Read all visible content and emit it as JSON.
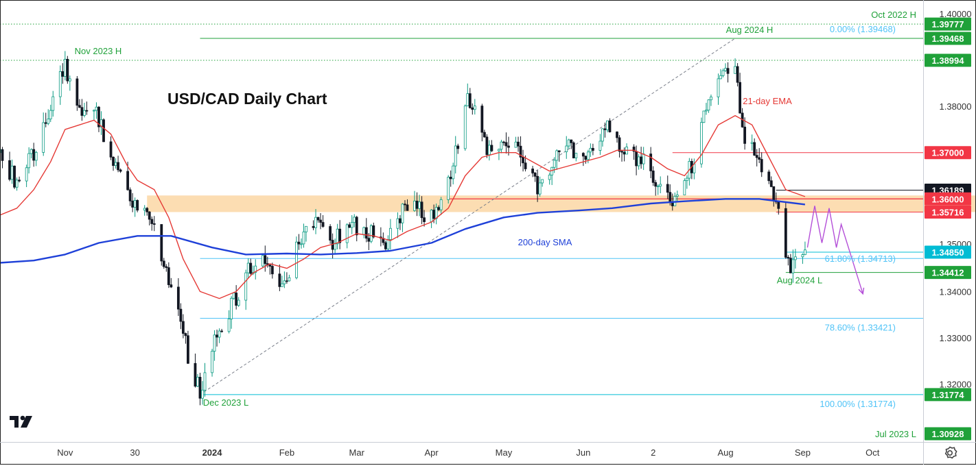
{
  "chart_data": {
    "type": "candlestick",
    "title": "USD/CAD Daily Chart",
    "instrument": "USD/CAD",
    "timeframe": "Daily",
    "x_range": [
      "2023-10-05",
      "2024-10-22"
    ],
    "ylim": [
      1.306,
      1.402
    ],
    "y_ticks": [
      "1.40000",
      "1.38000",
      "1.34000",
      "1.33000",
      "1.32000"
    ],
    "y_ticks_partial": [
      "1.35000"
    ],
    "x_ticks": [
      {
        "label": "Nov",
        "date": "2023-11-01",
        "bold": false
      },
      {
        "label": "30",
        "date": "2023-11-30",
        "bold": false
      },
      {
        "label": "2024",
        "date": "2024-01-01",
        "bold": true
      },
      {
        "label": "Feb",
        "date": "2024-02-01",
        "bold": false
      },
      {
        "label": "Mar",
        "date": "2024-03-01",
        "bold": false
      },
      {
        "label": "Apr",
        "date": "2024-04-01",
        "bold": false
      },
      {
        "label": "May",
        "date": "2024-05-01",
        "bold": false
      },
      {
        "label": "Jun",
        "date": "2024-06-03",
        "bold": false
      },
      {
        "label": "2",
        "date": "2024-07-02",
        "bold": false
      },
      {
        "label": "Aug",
        "date": "2024-08-01",
        "bold": false
      },
      {
        "label": "Sep",
        "date": "2024-09-02",
        "bold": false
      },
      {
        "label": "Oct",
        "date": "2024-10-01",
        "bold": false
      }
    ],
    "price_path": [
      [
        "2023-10-05",
        1.37
      ],
      [
        "2023-10-12",
        1.363
      ],
      [
        "2023-10-19",
        1.37
      ],
      [
        "2023-10-26",
        1.38
      ],
      [
        "2023-11-01",
        1.388
      ],
      [
        "2023-11-07",
        1.378
      ],
      [
        "2023-11-13",
        1.38
      ],
      [
        "2023-11-20",
        1.37
      ],
      [
        "2023-11-27",
        1.362
      ],
      [
        "2023-12-01",
        1.356
      ],
      [
        "2023-12-06",
        1.357
      ],
      [
        "2023-12-12",
        1.346
      ],
      [
        "2023-12-18",
        1.334
      ],
      [
        "2023-12-24",
        1.323
      ],
      [
        "2023-12-27",
        1.318
      ],
      [
        "2024-01-03",
        1.331
      ],
      [
        "2024-01-10",
        1.338
      ],
      [
        "2024-01-17",
        1.345
      ],
      [
        "2024-01-24",
        1.346
      ],
      [
        "2024-01-31",
        1.342
      ],
      [
        "2024-02-06",
        1.35
      ],
      [
        "2024-02-13",
        1.355
      ],
      [
        "2024-02-20",
        1.35
      ],
      [
        "2024-02-27",
        1.355
      ],
      [
        "2024-03-05",
        1.353
      ],
      [
        "2024-03-12",
        1.35
      ],
      [
        "2024-03-19",
        1.357
      ],
      [
        "2024-03-26",
        1.358
      ],
      [
        "2024-04-03",
        1.356
      ],
      [
        "2024-04-10",
        1.368
      ],
      [
        "2024-04-16",
        1.383
      ],
      [
        "2024-04-24",
        1.37
      ],
      [
        "2024-05-01",
        1.374
      ],
      [
        "2024-05-08",
        1.37
      ],
      [
        "2024-05-15",
        1.362
      ],
      [
        "2024-05-22",
        1.368
      ],
      [
        "2024-05-29",
        1.371
      ],
      [
        "2024-06-05",
        1.368
      ],
      [
        "2024-06-12",
        1.376
      ],
      [
        "2024-06-19",
        1.37
      ],
      [
        "2024-06-26",
        1.369
      ],
      [
        "2024-07-03",
        1.364
      ],
      [
        "2024-07-10",
        1.36
      ],
      [
        "2024-07-17",
        1.366
      ],
      [
        "2024-07-24",
        1.379
      ],
      [
        "2024-07-29",
        1.386
      ],
      [
        "2024-08-05",
        1.388
      ],
      [
        "2024-08-08",
        1.374
      ],
      [
        "2024-08-14",
        1.37
      ],
      [
        "2024-08-20",
        1.363
      ],
      [
        "2024-08-23",
        1.356
      ],
      [
        "2024-08-26",
        1.347
      ],
      [
        "2024-08-28",
        1.345
      ],
      [
        "2024-09-03",
        1.3485
      ]
    ],
    "moving_averages": [
      {
        "name": "21-day EMA",
        "color": "#e53935",
        "points": [
          [
            "2023-10-05",
            1.3565
          ],
          [
            "2023-10-12",
            1.358
          ],
          [
            "2023-10-19",
            1.362
          ],
          [
            "2023-10-26",
            1.368
          ],
          [
            "2023-11-01",
            1.375
          ],
          [
            "2023-11-07",
            1.376
          ],
          [
            "2023-11-13",
            1.377
          ],
          [
            "2023-11-20",
            1.374
          ],
          [
            "2023-11-27",
            1.367
          ],
          [
            "2023-12-01",
            1.364
          ],
          [
            "2023-12-08",
            1.362
          ],
          [
            "2023-12-14",
            1.356
          ],
          [
            "2023-12-20",
            1.347
          ],
          [
            "2023-12-27",
            1.34
          ],
          [
            "2024-01-04",
            1.3385
          ],
          [
            "2024-01-11",
            1.34
          ],
          [
            "2024-01-18",
            1.344
          ],
          [
            "2024-01-25",
            1.346
          ],
          [
            "2024-02-01",
            1.345
          ],
          [
            "2024-02-08",
            1.347
          ],
          [
            "2024-02-15",
            1.3495
          ],
          [
            "2024-02-22",
            1.3505
          ],
          [
            "2024-03-01",
            1.3525
          ],
          [
            "2024-03-08",
            1.352
          ],
          [
            "2024-03-15",
            1.351
          ],
          [
            "2024-03-22",
            1.353
          ],
          [
            "2024-04-01",
            1.355
          ],
          [
            "2024-04-08",
            1.358
          ],
          [
            "2024-04-15",
            1.365
          ],
          [
            "2024-04-22",
            1.369
          ],
          [
            "2024-04-29",
            1.37
          ],
          [
            "2024-05-06",
            1.37
          ],
          [
            "2024-05-13",
            1.368
          ],
          [
            "2024-05-20",
            1.366
          ],
          [
            "2024-05-27",
            1.367
          ],
          [
            "2024-06-03",
            1.368
          ],
          [
            "2024-06-10",
            1.369
          ],
          [
            "2024-06-17",
            1.3705
          ],
          [
            "2024-06-24",
            1.3705
          ],
          [
            "2024-07-01",
            1.369
          ],
          [
            "2024-07-08",
            1.3665
          ],
          [
            "2024-07-15",
            1.365
          ],
          [
            "2024-07-22",
            1.3695
          ],
          [
            "2024-07-29",
            1.376
          ],
          [
            "2024-08-05",
            1.378
          ],
          [
            "2024-08-12",
            1.376
          ],
          [
            "2024-08-19",
            1.369
          ],
          [
            "2024-08-26",
            1.362
          ],
          [
            "2024-09-03",
            1.3605
          ]
        ]
      },
      {
        "name": "200-day SMA",
        "color": "#1e40d8",
        "points": [
          [
            "2023-10-05",
            1.3462
          ],
          [
            "2023-10-19",
            1.3467
          ],
          [
            "2023-11-01",
            1.348
          ],
          [
            "2023-11-15",
            1.3505
          ],
          [
            "2023-12-01",
            1.352
          ],
          [
            "2023-12-15",
            1.352
          ],
          [
            "2024-01-01",
            1.3495
          ],
          [
            "2024-01-15",
            1.348
          ],
          [
            "2024-02-01",
            1.3482
          ],
          [
            "2024-02-15",
            1.348
          ],
          [
            "2024-03-01",
            1.3483
          ],
          [
            "2024-03-15",
            1.3488
          ],
          [
            "2024-04-01",
            1.3505
          ],
          [
            "2024-04-15",
            1.3535
          ],
          [
            "2024-05-01",
            1.356
          ],
          [
            "2024-05-15",
            1.357
          ],
          [
            "2024-06-01",
            1.3575
          ],
          [
            "2024-06-15",
            1.358
          ],
          [
            "2024-07-01",
            1.359
          ],
          [
            "2024-07-15",
            1.3595
          ],
          [
            "2024-08-01",
            1.36
          ],
          [
            "2024-08-15",
            1.36
          ],
          [
            "2024-09-03",
            1.3588
          ]
        ]
      }
    ],
    "support_zone": [
      1.35716,
      1.36
    ],
    "projection_path": [
      [
        "2024-09-04",
        1.3495
      ],
      [
        "2024-09-07",
        1.3585
      ],
      [
        "2024-09-10",
        1.3505
      ],
      [
        "2024-09-13",
        1.358
      ],
      [
        "2024-09-16",
        1.3495
      ],
      [
        "2024-09-18",
        1.3545
      ],
      [
        "2024-09-27",
        1.3395
      ]
    ],
    "fib_trendline": [
      [
        "2023-12-27",
        1.31774
      ],
      [
        "2024-08-05",
        1.39468
      ]
    ],
    "levels": [
      {
        "label": "Oct 2022 H",
        "value": "1.39777",
        "y": 1.39777,
        "line": "green-dotted",
        "badge": "#1fa139"
      },
      {
        "label": "Aug 2024 H",
        "value": "1.39468",
        "y": 1.39468,
        "line": "green",
        "badge": "#1fa139"
      },
      {
        "label": "Nov 2023 H",
        "value": "1.38994",
        "y": 1.38994,
        "line": "green-dotted",
        "badge": "#1fa139"
      },
      {
        "label": "",
        "value": "1.37000",
        "y": 1.37,
        "line": "red",
        "badge": "#f23645"
      },
      {
        "label": "",
        "value": "1.36189",
        "y": 1.36189,
        "line": "black",
        "badge": "#131722"
      },
      {
        "label": "",
        "value": "1.36000",
        "y": 1.36,
        "line": "red",
        "badge": "#f23645"
      },
      {
        "label": "",
        "value": "1.35716",
        "y": 1.35716,
        "line": "red",
        "badge": "#f23645"
      },
      {
        "label": "",
        "value": "1.34850",
        "y": 1.3485,
        "line": "blue",
        "badge": "#00bcd4"
      },
      {
        "label": "Aug 2024 L",
        "value": "1.34412",
        "y": 1.34412,
        "line": "green",
        "badge": "#1fa139"
      },
      {
        "label": "Dec 2023 L",
        "value": "1.31774",
        "y": 1.31774,
        "line": "blue",
        "badge": "#1fa139"
      },
      {
        "label": "Jul 2023 L",
        "value": "1.30928",
        "y": 1.30928,
        "line": "none",
        "badge": "#1fa139"
      }
    ],
    "fibonacci": [
      {
        "label": "0.00% (1.39468)",
        "y": 1.39468
      },
      {
        "label": "61.80% (1.34713)",
        "y": 1.34713
      },
      {
        "label": "78.60% (1.33421)",
        "y": 1.33421
      },
      {
        "label": "100.00% (1.31774)",
        "y": 1.31774
      }
    ],
    "annotations": [
      {
        "text": "Oct 2022 H",
        "color": "#1fa139"
      },
      {
        "text": "Aug 2024 H",
        "color": "#1fa139"
      },
      {
        "text": "Nov 2023 H",
        "color": "#1fa139"
      },
      {
        "text": "21-day EMA",
        "color": "#e53935"
      },
      {
        "text": "200-day SMA",
        "color": "#1e40d8"
      },
      {
        "text": "Aug 2024 L",
        "color": "#1fa139"
      },
      {
        "text": "Dec 2023 L",
        "color": "#1fa139"
      },
      {
        "text": "Jul 2023 L",
        "color": "#1fa139"
      }
    ],
    "colors": {
      "candle_up": "#089981",
      "candle_down": "#131722",
      "zone": "#fbd7a4",
      "fib": "#4fc3f7",
      "projection": "#b44fd8",
      "level_green": "#1fa139",
      "level_red": "#f23645",
      "level_blue": "#00bcd4"
    },
    "grid": false
  },
  "settings_icon": "gear-icon",
  "logo_icon": "tradingview-logo-icon"
}
